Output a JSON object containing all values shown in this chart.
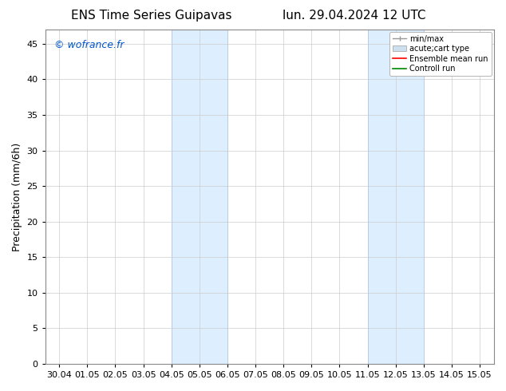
{
  "title_left": "ENS Time Series Guipavas",
  "title_right": "lun. 29.04.2024 12 UTC",
  "ylabel": "Precipitation (mm/6h)",
  "watermark": "© wofrance.fr",
  "watermark_color": "#0055cc",
  "background_color": "#ffffff",
  "plot_bg_color": "#ffffff",
  "shaded_bands": [
    {
      "x_start": 4.0,
      "x_end": 6.0,
      "color": "#ddeeff"
    },
    {
      "x_start": 11.0,
      "x_end": 13.0,
      "color": "#ddeeff"
    }
  ],
  "shaded_band_edge_color": "#b0ccee",
  "xlim_start": -0.5,
  "xlim_end": 15.5,
  "ylim_min": 0,
  "ylim_max": 47,
  "yticks": [
    0,
    5,
    10,
    15,
    20,
    25,
    30,
    35,
    40,
    45
  ],
  "xtick_labels": [
    "30.04",
    "01.05",
    "02.05",
    "03.05",
    "04.05",
    "05.05",
    "06.05",
    "07.05",
    "08.05",
    "09.05",
    "10.05",
    "11.05",
    "12.05",
    "13.05",
    "14.05",
    "15.05"
  ],
  "grid_color": "#cccccc",
  "legend_labels": [
    "min/max",
    "acute;cart type",
    "Ensemble mean run",
    "Controll run"
  ],
  "legend_minmax_color": "#999999",
  "legend_acutecart_color": "#cce0f0",
  "legend_ensemble_color": "#ff0000",
  "legend_controll_color": "#008800",
  "title_fontsize": 11,
  "axis_label_fontsize": 9,
  "tick_fontsize": 8,
  "watermark_fontsize": 9,
  "legend_fontsize": 7
}
